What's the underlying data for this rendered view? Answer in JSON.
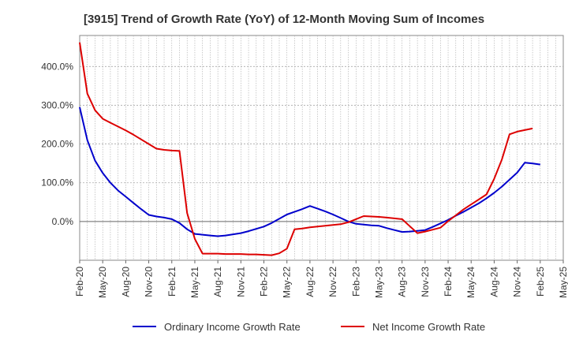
{
  "chart_data": {
    "type": "line",
    "title": "[3915]  Trend of Growth Rate (YoY) of 12-Month Moving Sum of Incomes",
    "xlabel": "",
    "ylabel": "",
    "x_tick_labels": [
      "Feb-20",
      "May-20",
      "Aug-20",
      "Nov-20",
      "Feb-21",
      "May-21",
      "Aug-21",
      "Nov-21",
      "Feb-22",
      "May-22",
      "Aug-22",
      "Nov-22",
      "Feb-23",
      "May-23",
      "Aug-23",
      "Nov-23",
      "Feb-24",
      "May-24",
      "Aug-24",
      "Nov-24",
      "Feb-25",
      "May-25"
    ],
    "y_ticks": [
      0,
      100,
      200,
      300,
      400
    ],
    "y_tick_labels": [
      "0.0%",
      "100.0%",
      "200.0%",
      "300.0%",
      "400.0%"
    ],
    "ylim": [
      -100,
      480
    ],
    "x_range_months": [
      0,
      63
    ],
    "grid": true,
    "legend_position": "bottom",
    "colors": {
      "ordinary": "#0000cc",
      "net": "#dd0000",
      "grid": "#aaaaaa",
      "zero_line": "#666666"
    },
    "series": [
      {
        "name": "Ordinary Income Growth Rate",
        "color": "#0000cc",
        "x": [
          0,
          1,
          2,
          3,
          4,
          5,
          6,
          7,
          8,
          9,
          10,
          11,
          12,
          13,
          14,
          15,
          16,
          17,
          18,
          19,
          20,
          21,
          22,
          23,
          24,
          25,
          26,
          27,
          28,
          29,
          30,
          31,
          32,
          33,
          34,
          35,
          36,
          37,
          38,
          39,
          40,
          41,
          42,
          43,
          44,
          45,
          46,
          47,
          48,
          49,
          50,
          51,
          52,
          53,
          54,
          55,
          56,
          57,
          58,
          59,
          60
        ],
        "values": [
          295,
          210,
          157,
          125,
          100,
          80,
          64,
          48,
          32,
          17,
          13,
          10,
          6,
          -4,
          -20,
          -32,
          -34,
          -36,
          -38,
          -36,
          -33,
          -30,
          -25,
          -19,
          -13,
          -4,
          7,
          18,
          25,
          32,
          40,
          33,
          26,
          18,
          9,
          0,
          -6,
          -8,
          -10,
          -11,
          -17,
          -22,
          -27,
          -26,
          -24,
          -22,
          -14,
          -5,
          4,
          15,
          25,
          36,
          47,
          60,
          74,
          90,
          108,
          126,
          152,
          150,
          147
        ]
      },
      {
        "name": "Net Income Growth Rate",
        "color": "#dd0000",
        "x": [
          0,
          1,
          2,
          3,
          4,
          5,
          6,
          7,
          8,
          9,
          10,
          11,
          12,
          13,
          14,
          15,
          16,
          17,
          18,
          19,
          20,
          21,
          22,
          23,
          24,
          25,
          26,
          27,
          28,
          29,
          30,
          31,
          32,
          33,
          34,
          35,
          36,
          37,
          38,
          39,
          40,
          41,
          42,
          43,
          44,
          45,
          46,
          47,
          48,
          49,
          50,
          51,
          52,
          53,
          54,
          55,
          56,
          57,
          58,
          59,
          60
        ],
        "values": [
          462,
          330,
          287,
          265,
          255,
          245,
          235,
          224,
          212,
          200,
          188,
          185,
          183,
          182,
          22,
          -45,
          -83,
          -83,
          -83,
          -84,
          -84,
          -84,
          -85,
          -85,
          -86,
          -87,
          -82,
          -70,
          -20,
          -18,
          -15,
          -13,
          -11,
          -9,
          -7,
          -2,
          6,
          14,
          13,
          12,
          10,
          8,
          6,
          -12,
          -30,
          -26,
          -21,
          -16,
          1,
          16,
          31,
          44,
          57,
          70,
          110,
          160,
          225,
          232,
          236,
          240,
          null
        ]
      }
    ]
  }
}
